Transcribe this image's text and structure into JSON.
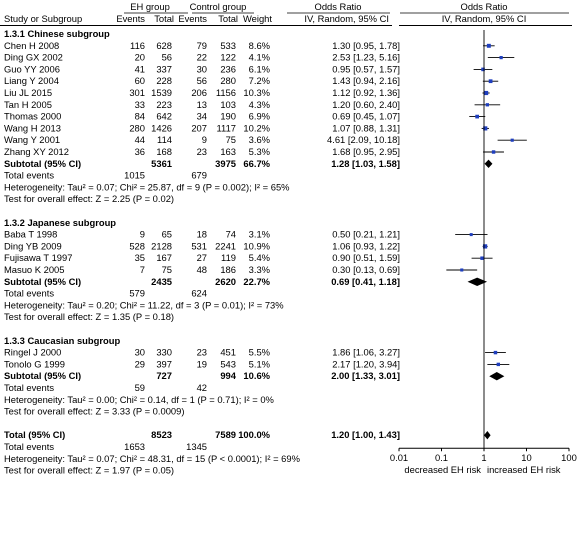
{
  "header": {
    "group1": "EH group",
    "group2": "Control group",
    "or_title": "Odds Ratio",
    "plot_title": "Odds Ratio",
    "col_study": "Study or Subgroup",
    "col_events1": "Events",
    "col_total1": "Total",
    "col_events2": "Events",
    "col_total2": "Total",
    "col_weight": "Weight",
    "col_ci": "IV, Random, 95% CI",
    "plot_ci": "IV, Random, 95% CI"
  },
  "chart_data": {
    "type": "forest",
    "x_scale": "log",
    "x_ticks": [
      0.01,
      0.1,
      1,
      10,
      100
    ],
    "x_tick_labels": [
      "0.01",
      "0.1",
      "1",
      "10",
      "100"
    ],
    "xlim": [
      0.01,
      100
    ],
    "axis_label_left": "decreased EH risk",
    "axis_label_right": "increased EH risk",
    "marker_color": "#1f3fbf",
    "subgroups": [
      {
        "title": "1.3.1 Chinese subgroup",
        "studies": [
          {
            "name": "Chen H 2008",
            "e1": "116",
            "t1": "628",
            "e2": "79",
            "t2": "533",
            "weight": "8.6%",
            "ci_text": "1.30 [0.95, 1.78]",
            "or": 1.3,
            "lo": 0.95,
            "hi": 1.78
          },
          {
            "name": "Ding GX 2002",
            "e1": "20",
            "t1": "56",
            "e2": "22",
            "t2": "122",
            "weight": "4.1%",
            "ci_text": "2.53 [1.23, 5.16]",
            "or": 2.53,
            "lo": 1.23,
            "hi": 5.16
          },
          {
            "name": "Guo YY 2006",
            "e1": "41",
            "t1": "337",
            "e2": "30",
            "t2": "236",
            "weight": "6.1%",
            "ci_text": "0.95 [0.57, 1.57]",
            "or": 0.95,
            "lo": 0.57,
            "hi": 1.57
          },
          {
            "name": "Liang Y  2004",
            "e1": "60",
            "t1": "228",
            "e2": "56",
            "t2": "280",
            "weight": "7.2%",
            "ci_text": "1.43 [0.94, 2.16]",
            "or": 1.43,
            "lo": 0.94,
            "hi": 2.16
          },
          {
            "name": "Liu JL 2015",
            "e1": "301",
            "t1": "1539",
            "e2": "206",
            "t2": "1156",
            "weight": "10.3%",
            "ci_text": "1.12 [0.92, 1.36]",
            "or": 1.12,
            "lo": 0.92,
            "hi": 1.36
          },
          {
            "name": "Tan H 2005",
            "e1": "33",
            "t1": "223",
            "e2": "13",
            "t2": "103",
            "weight": "4.3%",
            "ci_text": "1.20 [0.60, 2.40]",
            "or": 1.2,
            "lo": 0.6,
            "hi": 2.4
          },
          {
            "name": "Thomas 2000",
            "e1": "84",
            "t1": "642",
            "e2": "34",
            "t2": "190",
            "weight": "6.9%",
            "ci_text": "0.69 [0.45, 1.07]",
            "or": 0.69,
            "lo": 0.45,
            "hi": 1.07
          },
          {
            "name": "Wang H 2013",
            "e1": "280",
            "t1": "1426",
            "e2": "207",
            "t2": "1117",
            "weight": "10.2%",
            "ci_text": "1.07 [0.88, 1.31]",
            "or": 1.07,
            "lo": 0.88,
            "hi": 1.31
          },
          {
            "name": "Wang Y 2001",
            "e1": "44",
            "t1": "114",
            "e2": "9",
            "t2": "75",
            "weight": "3.6%",
            "ci_text": "4.61 [2.09, 10.18]",
            "or": 4.61,
            "lo": 2.09,
            "hi": 10.18
          },
          {
            "name": "Zhang XY 2012",
            "e1": "36",
            "t1": "168",
            "e2": "23",
            "t2": "163",
            "weight": "5.3%",
            "ci_text": "1.68 [0.95, 2.95]",
            "or": 1.68,
            "lo": 0.95,
            "hi": 2.95
          }
        ],
        "subtotal": {
          "label": "Subtotal (95% CI)",
          "t1": "5361",
          "t2": "3975",
          "weight": "66.7%",
          "ci_text": "1.28 [1.03, 1.58]",
          "or": 1.28,
          "lo": 1.03,
          "hi": 1.58
        },
        "total_events": {
          "label": "Total events",
          "e1": "1015",
          "e2": "679"
        },
        "heterogeneity": "Heterogeneity: Tau² = 0.07; Chi² = 25.87, df = 9 (P = 0.002); I² = 65%",
        "overall": "Test for overall effect: Z = 2.25 (P = 0.02)"
      },
      {
        "title": "1.3.2 Japanese subgroup",
        "studies": [
          {
            "name": "Baba T 1998",
            "e1": "9",
            "t1": "65",
            "e2": "18",
            "t2": "74",
            "weight": "3.1%",
            "ci_text": "0.50 [0.21, 1.21]",
            "or": 0.5,
            "lo": 0.21,
            "hi": 1.21
          },
          {
            "name": "Ding YB 2009",
            "e1": "528",
            "t1": "2128",
            "e2": "531",
            "t2": "2241",
            "weight": "10.9%",
            "ci_text": "1.06 [0.93, 1.22]",
            "or": 1.06,
            "lo": 0.93,
            "hi": 1.22
          },
          {
            "name": "Fujisawa T 1997",
            "e1": "35",
            "t1": "167",
            "e2": "27",
            "t2": "119",
            "weight": "5.4%",
            "ci_text": "0.90 [0.51, 1.59]",
            "or": 0.9,
            "lo": 0.51,
            "hi": 1.59
          },
          {
            "name": "Masuo K 2005",
            "e1": "7",
            "t1": "75",
            "e2": "48",
            "t2": "186",
            "weight": "3.3%",
            "ci_text": "0.30 [0.13, 0.69]",
            "or": 0.3,
            "lo": 0.13,
            "hi": 0.69
          }
        ],
        "subtotal": {
          "label": "Subtotal (95% CI)",
          "t1": "2435",
          "t2": "2620",
          "weight": "22.7%",
          "ci_text": "0.69 [0.41, 1.18]",
          "or": 0.69,
          "lo": 0.41,
          "hi": 1.18
        },
        "total_events": {
          "label": "Total events",
          "e1": "579",
          "e2": "624"
        },
        "heterogeneity": "Heterogeneity: Tau² = 0.20; Chi² = 11.22, df = 3 (P = 0.01); I² = 73%",
        "overall": "Test for overall effect: Z = 1.35 (P = 0.18)"
      },
      {
        "title": "1.3.3 Caucasian subgroup",
        "studies": [
          {
            "name": "Ringel J 2000",
            "e1": "30",
            "t1": "330",
            "e2": "23",
            "t2": "451",
            "weight": "5.5%",
            "ci_text": "1.86 [1.06, 3.27]",
            "or": 1.86,
            "lo": 1.06,
            "hi": 3.27
          },
          {
            "name": "Tonolo G 1999",
            "e1": "29",
            "t1": "397",
            "e2": "19",
            "t2": "543",
            "weight": "5.1%",
            "ci_text": "2.17 [1.20, 3.94]",
            "or": 2.17,
            "lo": 1.2,
            "hi": 3.94
          }
        ],
        "subtotal": {
          "label": "Subtotal (95% CI)",
          "t1": "727",
          "t2": "994",
          "weight": "10.6%",
          "ci_text": "2.00 [1.33, 3.01]",
          "or": 2.0,
          "lo": 1.33,
          "hi": 3.01
        },
        "total_events": {
          "label": "Total events",
          "e1": "59",
          "e2": "42"
        },
        "heterogeneity": "Heterogeneity: Tau² = 0.00; Chi² = 0.14, df = 1 (P = 0.71); I² = 0%",
        "overall": "Test for overall effect: Z = 3.33 (P = 0.0009)"
      }
    ],
    "total": {
      "label": "Total (95% CI)",
      "t1": "8523",
      "t2": "7589",
      "weight": "100.0%",
      "ci_text": "1.20 [1.00, 1.43]",
      "or": 1.2,
      "lo": 1.0,
      "hi": 1.43
    },
    "total_events": {
      "label": "Total events",
      "e1": "1653",
      "e2": "1345"
    },
    "heterogeneity": "Heterogeneity: Tau² = 0.07; Chi² = 48.31, df = 15 (P < 0.0001); I² = 69%",
    "overall": "Test for overall effect: Z = 1.97 (P = 0.05)"
  }
}
